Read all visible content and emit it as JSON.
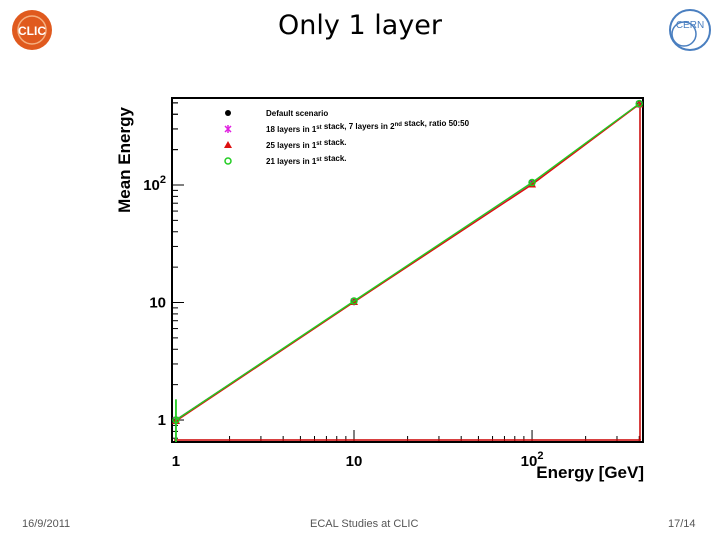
{
  "slide": {
    "title": "Only 1 layer",
    "footer_date": "16/9/2011",
    "footer_center": "ECAL Studies at CLIC",
    "footer_page": "17/14"
  },
  "logos": {
    "left_text": "CLIC",
    "right_text": "CERN"
  },
  "colors": {
    "series_black": "#000000",
    "series_magenta": "#e020e0",
    "series_red": "#dd1111",
    "series_green": "#22cc22",
    "frame_red": "#cc0000"
  },
  "chart_data": {
    "type": "line",
    "xlabel": "Energy [GeV]",
    "ylabel": "Mean Energy",
    "x_scale": "log",
    "y_scale": "log",
    "xlim": [
      0.95,
      420
    ],
    "ylim": [
      0.65,
      550
    ],
    "x_ticks": [
      {
        "value": 1,
        "label": "1"
      },
      {
        "value": 10,
        "label": "10"
      },
      {
        "value": 100,
        "label": "10",
        "sup": "2"
      }
    ],
    "y_ticks": [
      {
        "value": 1,
        "label": "1"
      },
      {
        "value": 10,
        "label": "10"
      },
      {
        "value": 100,
        "label": "10",
        "sup": "2"
      }
    ],
    "legend_position": "top-left",
    "series": [
      {
        "name": "Default scenario",
        "marker": "circle",
        "color": "#000000",
        "x": [
          1,
          10,
          100,
          400
        ],
        "y": [
          1.0,
          10.2,
          104,
          490
        ]
      },
      {
        "name": "18 layers in 1st stack, 7 layers in 2nd stack, ratio 50:50",
        "marker": "star",
        "color": "#e020e0",
        "x": [
          1,
          10,
          100,
          400
        ],
        "y": [
          1.0,
          10.2,
          103,
          488
        ]
      },
      {
        "name": "25 layers in 1st stack.",
        "marker": "triangle",
        "color": "#dd1111",
        "x": [
          1,
          10,
          100,
          400
        ],
        "y": [
          0.98,
          10.1,
          101,
          486
        ]
      },
      {
        "name": "21 layers in 1st stack.",
        "marker": "open-circle",
        "color": "#22cc22",
        "x": [
          1,
          10,
          100,
          400
        ],
        "y": [
          1.0,
          10.3,
          105,
          492
        ],
        "y_err": [
          0.5,
          0.15,
          0,
          0
        ]
      }
    ]
  }
}
